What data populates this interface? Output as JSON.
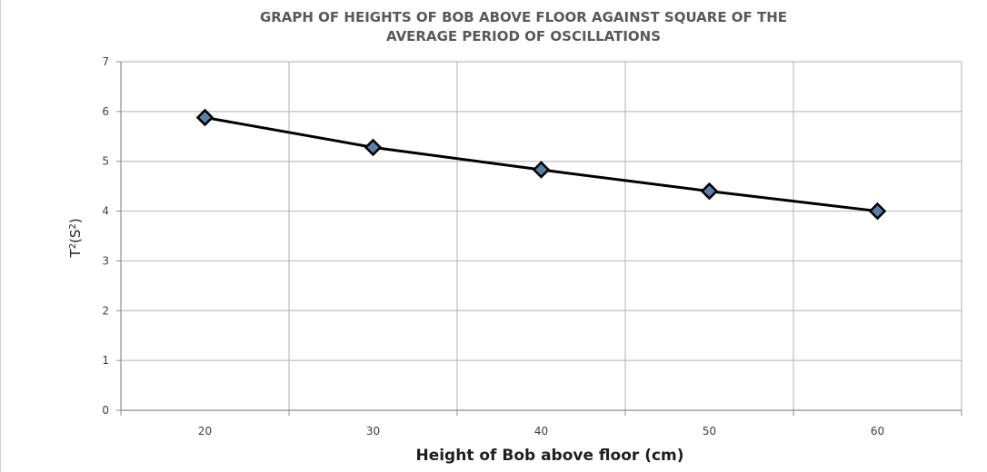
{
  "chart_data": {
    "type": "line",
    "title_lines": [
      "GRAPH OF HEIGHTS OF BOB ABOVE FLOOR AGAINST SQUARE OF THE",
      "AVERAGE PERIOD OF OSCILLATIONS"
    ],
    "xlabel": "Height of Bob above floor (cm)",
    "ylabel_parts": {
      "base": "T",
      "sup1": "2",
      "mid": "(S",
      "sup2": "2",
      "end": ")"
    },
    "categories": [
      "20",
      "30",
      "40",
      "50",
      "60"
    ],
    "series": [
      {
        "values": [
          5.88,
          5.28,
          4.83,
          4.4,
          4.0
        ]
      }
    ],
    "ylim": [
      0,
      7
    ],
    "yticks": [
      "0",
      "1",
      "2",
      "3",
      "4",
      "5",
      "6",
      "7"
    ],
    "grid": true,
    "legend": "none",
    "colors": {
      "line": "#000000",
      "marker_fill": "#5a7fa8",
      "marker_stroke": "#000000",
      "grid": "#bfbfbf",
      "axis": "#8c8c8c"
    }
  }
}
